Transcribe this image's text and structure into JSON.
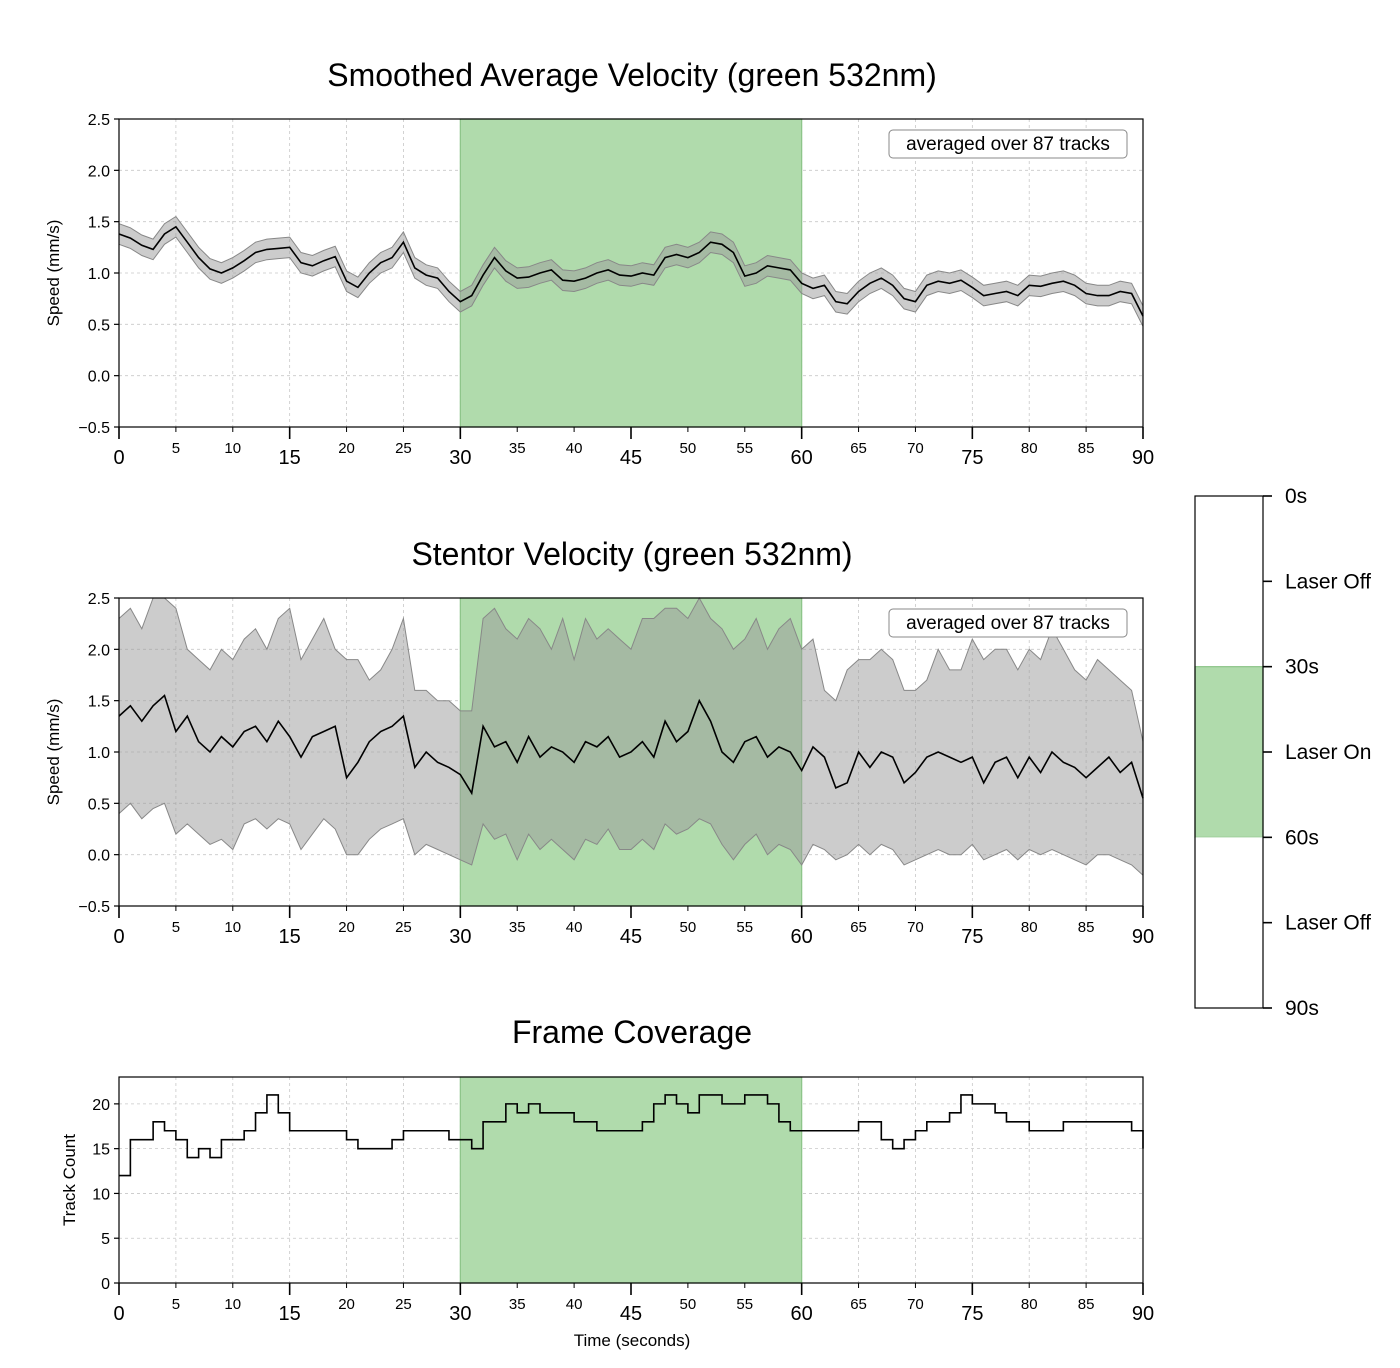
{
  "chart_data": [
    {
      "type": "line",
      "title": "Smoothed Average Velocity (green 532nm)",
      "xlabel": "",
      "ylabel": "Speed (mm/s)",
      "xlim": [
        0,
        90
      ],
      "ylim": [
        -0.5,
        2.5
      ],
      "yticks": [
        "−0.5",
        "0.0",
        "0.5",
        "1.0",
        "1.5",
        "2.0",
        "2.5"
      ],
      "xticks_major": [
        "0",
        "15",
        "30",
        "45",
        "60",
        "75",
        "90"
      ],
      "xticks_minor": [
        "5",
        "10",
        "20",
        "25",
        "35",
        "40",
        "50",
        "55",
        "65",
        "70",
        "80",
        "85"
      ],
      "highlight": {
        "from": 30,
        "to": 60,
        "color": "#b0dbac"
      },
      "annotation": "averaged over 87 tracks",
      "band_width": 0.1,
      "grid": true,
      "series": [
        {
          "x": [
            0,
            1,
            2,
            3,
            4,
            5,
            6,
            7,
            8,
            9,
            10,
            11,
            12,
            13,
            14,
            15,
            16,
            17,
            18,
            19,
            20,
            21,
            22,
            23,
            24,
            25,
            26,
            27,
            28,
            29,
            30,
            31,
            32,
            33,
            34,
            35,
            36,
            37,
            38,
            39,
            40,
            41,
            42,
            43,
            44,
            45,
            46,
            47,
            48,
            49,
            50,
            51,
            52,
            53,
            54,
            55,
            56,
            57,
            58,
            59,
            60,
            61,
            62,
            63,
            64,
            65,
            66,
            67,
            68,
            69,
            70,
            71,
            72,
            73,
            74,
            75,
            76,
            77,
            78,
            79,
            80,
            81,
            82,
            83,
            84,
            85,
            86,
            87,
            88,
            89,
            90
          ],
          "values": [
            1.38,
            1.34,
            1.27,
            1.23,
            1.38,
            1.45,
            1.3,
            1.15,
            1.04,
            1.0,
            1.05,
            1.12,
            1.2,
            1.23,
            1.24,
            1.25,
            1.1,
            1.07,
            1.12,
            1.16,
            0.92,
            0.86,
            1.0,
            1.1,
            1.15,
            1.3,
            1.05,
            0.98,
            0.95,
            0.82,
            0.72,
            0.78,
            0.98,
            1.15,
            1.02,
            0.95,
            0.96,
            1.0,
            1.03,
            0.93,
            0.92,
            0.95,
            1.0,
            1.03,
            0.98,
            0.97,
            1.0,
            0.98,
            1.15,
            1.18,
            1.15,
            1.2,
            1.3,
            1.28,
            1.2,
            0.97,
            1.0,
            1.07,
            1.05,
            1.03,
            0.9,
            0.85,
            0.88,
            0.72,
            0.7,
            0.82,
            0.9,
            0.95,
            0.88,
            0.75,
            0.72,
            0.88,
            0.92,
            0.9,
            0.93,
            0.86,
            0.78,
            0.8,
            0.82,
            0.78,
            0.88,
            0.87,
            0.9,
            0.92,
            0.88,
            0.8,
            0.78,
            0.78,
            0.82,
            0.8,
            0.58
          ]
        }
      ]
    },
    {
      "type": "line",
      "title": "Stentor Velocity (green 532nm)",
      "xlabel": "",
      "ylabel": "Speed (mm/s)",
      "xlim": [
        0,
        90
      ],
      "ylim": [
        -0.5,
        2.5
      ],
      "yticks": [
        "−0.5",
        "0.0",
        "0.5",
        "1.0",
        "1.5",
        "2.0",
        "2.5"
      ],
      "xticks_major": [
        "0",
        "15",
        "30",
        "45",
        "60",
        "75",
        "90"
      ],
      "xticks_minor": [
        "5",
        "10",
        "20",
        "25",
        "35",
        "40",
        "50",
        "55",
        "65",
        "70",
        "80",
        "85"
      ],
      "highlight": {
        "from": 30,
        "to": 60,
        "color": "#b0dbac"
      },
      "annotation": "averaged over 87 tracks",
      "grid": true,
      "series": [
        {
          "x": [
            0,
            1,
            2,
            3,
            4,
            5,
            6,
            7,
            8,
            9,
            10,
            11,
            12,
            13,
            14,
            15,
            16,
            17,
            18,
            19,
            20,
            21,
            22,
            23,
            24,
            25,
            26,
            27,
            28,
            29,
            30,
            31,
            32,
            33,
            34,
            35,
            36,
            37,
            38,
            39,
            40,
            41,
            42,
            43,
            44,
            45,
            46,
            47,
            48,
            49,
            50,
            51,
            52,
            53,
            54,
            55,
            56,
            57,
            58,
            59,
            60,
            61,
            62,
            63,
            64,
            65,
            66,
            67,
            68,
            69,
            70,
            71,
            72,
            73,
            74,
            75,
            76,
            77,
            78,
            79,
            80,
            81,
            82,
            83,
            84,
            85,
            86,
            87,
            88,
            89,
            90
          ],
          "values": [
            1.35,
            1.45,
            1.3,
            1.45,
            1.55,
            1.2,
            1.35,
            1.1,
            1.0,
            1.15,
            1.05,
            1.2,
            1.25,
            1.1,
            1.3,
            1.15,
            0.95,
            1.15,
            1.2,
            1.25,
            0.75,
            0.9,
            1.1,
            1.2,
            1.25,
            1.35,
            0.85,
            1.0,
            0.9,
            0.85,
            0.78,
            0.6,
            1.25,
            1.05,
            1.1,
            0.9,
            1.15,
            0.95,
            1.05,
            1.0,
            0.9,
            1.1,
            1.05,
            1.15,
            0.95,
            1.0,
            1.1,
            0.95,
            1.3,
            1.1,
            1.2,
            1.5,
            1.3,
            1.0,
            0.9,
            1.1,
            1.15,
            0.95,
            1.05,
            1.0,
            0.82,
            1.05,
            0.95,
            0.65,
            0.7,
            1.0,
            0.85,
            1.0,
            0.95,
            0.7,
            0.8,
            0.95,
            1.0,
            0.95,
            0.9,
            0.95,
            0.7,
            0.9,
            0.95,
            0.75,
            0.95,
            0.8,
            1.0,
            0.9,
            0.85,
            0.75,
            0.85,
            0.95,
            0.8,
            0.9,
            0.55
          ]
        }
      ],
      "band_upper": [
        2.3,
        2.4,
        2.2,
        2.5,
        2.5,
        2.4,
        2.0,
        1.9,
        1.8,
        2.0,
        1.9,
        2.1,
        2.2,
        2.0,
        2.3,
        2.4,
        1.9,
        2.1,
        2.3,
        2.0,
        1.9,
        1.9,
        1.7,
        1.8,
        2.0,
        2.3,
        1.6,
        1.6,
        1.5,
        1.5,
        1.4,
        1.4,
        2.3,
        2.4,
        2.2,
        2.1,
        2.3,
        2.2,
        2.0,
        2.3,
        1.9,
        2.3,
        2.1,
        2.2,
        2.1,
        2.0,
        2.3,
        2.3,
        2.4,
        2.4,
        2.3,
        2.5,
        2.3,
        2.2,
        2.0,
        2.1,
        2.3,
        2.0,
        2.2,
        2.3,
        2.0,
        2.1,
        1.6,
        1.5,
        1.8,
        1.9,
        1.9,
        2.0,
        1.9,
        1.6,
        1.6,
        1.7,
        2.0,
        1.8,
        1.8,
        2.1,
        1.9,
        2.0,
        2.0,
        1.8,
        2.0,
        1.9,
        2.2,
        2.0,
        1.8,
        1.7,
        1.9,
        1.8,
        1.7,
        1.6,
        1.1
      ],
      "band_lower": [
        0.4,
        0.5,
        0.35,
        0.45,
        0.5,
        0.2,
        0.3,
        0.2,
        0.1,
        0.15,
        0.05,
        0.3,
        0.35,
        0.25,
        0.35,
        0.3,
        0.05,
        0.2,
        0.35,
        0.25,
        0.0,
        0.0,
        0.15,
        0.25,
        0.3,
        0.35,
        0.0,
        0.1,
        0.05,
        0.0,
        -0.05,
        -0.1,
        0.3,
        0.15,
        0.2,
        -0.05,
        0.2,
        0.05,
        0.15,
        0.05,
        -0.05,
        0.15,
        0.1,
        0.25,
        0.05,
        0.05,
        0.15,
        0.05,
        0.3,
        0.2,
        0.25,
        0.35,
        0.3,
        0.1,
        -0.05,
        0.1,
        0.2,
        0.0,
        0.1,
        0.05,
        -0.1,
        0.1,
        0.05,
        -0.05,
        0.0,
        0.1,
        0.0,
        0.1,
        0.05,
        -0.1,
        -0.05,
        0.0,
        0.05,
        0.0,
        0.0,
        0.1,
        -0.05,
        0.0,
        0.05,
        -0.05,
        0.05,
        0.0,
        0.05,
        0.0,
        -0.05,
        -0.1,
        0.0,
        0.0,
        -0.05,
        -0.1,
        -0.2
      ]
    },
    {
      "type": "line",
      "title": "Frame Coverage",
      "xlabel": "Time (seconds)",
      "ylabel": "Track Count",
      "xlim": [
        0,
        90
      ],
      "ylim": [
        0,
        23
      ],
      "yticks": [
        "0",
        "5",
        "10",
        "15",
        "20"
      ],
      "xticks_major": [
        "0",
        "15",
        "30",
        "45",
        "60",
        "75",
        "90"
      ],
      "xticks_minor": [
        "5",
        "10",
        "20",
        "25",
        "35",
        "40",
        "50",
        "55",
        "65",
        "70",
        "80",
        "85"
      ],
      "highlight": {
        "from": 30,
        "to": 60,
        "color": "#b0dbac"
      },
      "grid": true,
      "series": [
        {
          "x": [
            0,
            1,
            2,
            3,
            4,
            5,
            6,
            7,
            8,
            9,
            10,
            11,
            12,
            13,
            14,
            15,
            16,
            17,
            18,
            19,
            20,
            21,
            22,
            23,
            24,
            25,
            26,
            27,
            28,
            29,
            30,
            31,
            32,
            33,
            34,
            35,
            36,
            37,
            38,
            39,
            40,
            41,
            42,
            43,
            44,
            45,
            46,
            47,
            48,
            49,
            50,
            51,
            52,
            53,
            54,
            55,
            56,
            57,
            58,
            59,
            60,
            61,
            62,
            63,
            64,
            65,
            66,
            67,
            68,
            69,
            70,
            71,
            72,
            73,
            74,
            75,
            76,
            77,
            78,
            79,
            80,
            81,
            82,
            83,
            84,
            85,
            86,
            87,
            88,
            89,
            90
          ],
          "values": [
            12,
            16,
            16,
            18,
            17,
            16,
            14,
            15,
            14,
            16,
            16,
            17,
            19,
            21,
            19,
            17,
            17,
            17,
            17,
            17,
            16,
            15,
            15,
            15,
            16,
            17,
            17,
            17,
            17,
            16,
            16,
            15,
            18,
            18,
            20,
            19,
            20,
            19,
            19,
            19,
            18,
            18,
            17,
            17,
            17,
            17,
            18,
            20,
            21,
            20,
            19,
            21,
            21,
            20,
            20,
            21,
            21,
            20,
            18,
            17,
            17,
            17,
            17,
            17,
            17,
            18,
            18,
            16,
            15,
            16,
            17,
            18,
            18,
            19,
            21,
            20,
            20,
            19,
            18,
            18,
            17,
            17,
            17,
            18,
            18,
            18,
            18,
            18,
            18,
            17,
            15
          ]
        }
      ]
    }
  ],
  "colorbar": {
    "ticks": [
      "0s",
      "Laser Off",
      "30s",
      "Laser On",
      "60s",
      "Laser Off",
      "90s"
    ],
    "segments": [
      {
        "from": 0,
        "to": 30,
        "color": "#ffffff"
      },
      {
        "from": 30,
        "to": 60,
        "color": "#b0dbac"
      },
      {
        "from": 60,
        "to": 90,
        "color": "#ffffff"
      }
    ]
  },
  "colors": {
    "laser_on": "#b0dbac",
    "laser_on_edge": "#8cc488",
    "band": "#9a9a9a",
    "band_edge": "#888888",
    "line": "#000000",
    "grid": "#c8c8c8"
  }
}
